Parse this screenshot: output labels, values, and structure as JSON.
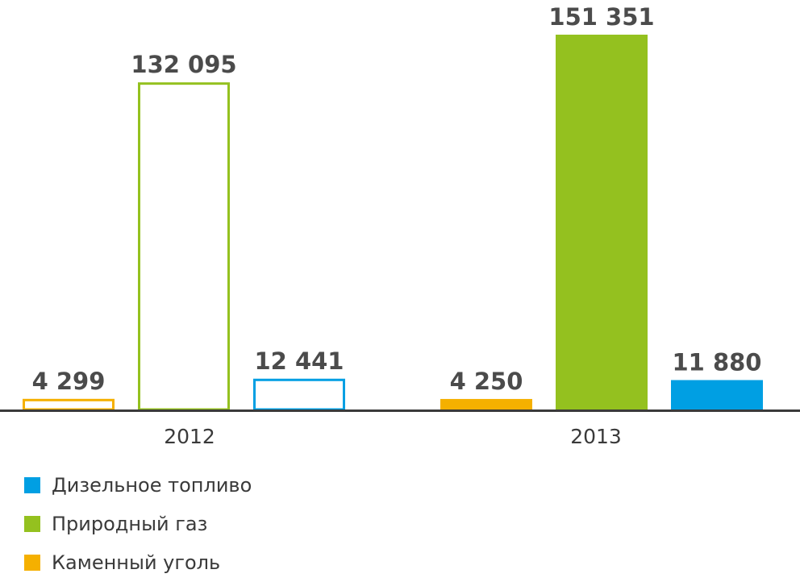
{
  "chart_data": {
    "type": "bar",
    "categories": [
      "2012",
      "2013"
    ],
    "series": [
      {
        "name": "Каменный уголь",
        "color": "#f5b000",
        "values": [
          4299,
          4250
        ],
        "value_labels": [
          "4 299",
          "4 250"
        ]
      },
      {
        "name": "Природный газ",
        "color": "#94c11f",
        "values": [
          132095,
          151351
        ],
        "value_labels": [
          "132 095",
          "151 351"
        ]
      },
      {
        "name": "Дизельное топливо",
        "color": "#009fe3",
        "values": [
          12441,
          11880
        ],
        "value_labels": [
          "12 441",
          "11 880"
        ]
      }
    ],
    "bar_style": [
      "outline",
      "filled"
    ],
    "ylim": [
      0,
      151351
    ],
    "grid": false,
    "legend_position": "bottom-left",
    "title": "",
    "xlabel": "",
    "ylabel": ""
  },
  "legend": [
    {
      "label": "Дизельное топливо",
      "color": "#009fe3"
    },
    {
      "label": "Природный газ",
      "color": "#94c11f"
    },
    {
      "label": "Каменный уголь",
      "color": "#f5b000"
    }
  ]
}
